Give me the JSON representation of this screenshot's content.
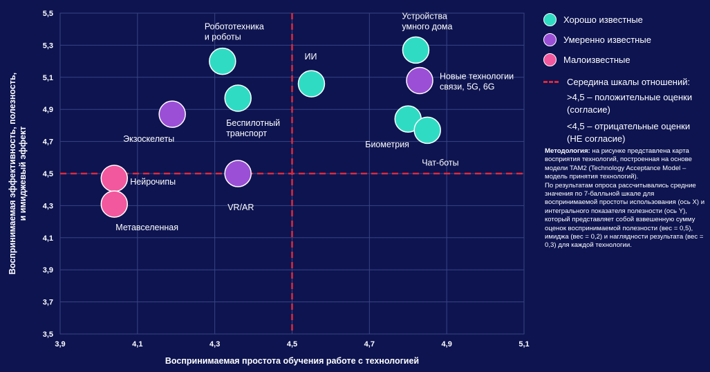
{
  "chart_data": {
    "type": "scatter",
    "xlabel": "Воспринимаемая простота обучения работе с технологией",
    "ylabel_lines": [
      "Воспринимаемая эффективность, полезность,",
      "и имиджевый эффект"
    ],
    "xlim": [
      3.9,
      5.1
    ],
    "ylim": [
      3.5,
      5.5
    ],
    "x_ticks": [
      "3,9",
      "4,1",
      "4,3",
      "4,5",
      "4,7",
      "4,9",
      "5,1"
    ],
    "y_ticks": [
      "3,5",
      "3,7",
      "3,9",
      "4,1",
      "4,3",
      "4,5",
      "4,7",
      "4,9",
      "5,1",
      "5,3",
      "5,5"
    ],
    "grid": true,
    "midline": {
      "x": 4.5,
      "y": 4.5
    },
    "series": [
      {
        "name": "Хорошо известные",
        "color": "#2fdcc3",
        "points": [
          {
            "x": 4.32,
            "y": 5.2,
            "label_lines": [
              "Робототехника",
              "и роботы"
            ]
          },
          {
            "x": 4.36,
            "y": 4.97,
            "label_lines": [
              "Беспилотный",
              "транспорт"
            ]
          },
          {
            "x": 4.55,
            "y": 5.06,
            "label_lines": [
              "ИИ"
            ]
          },
          {
            "x": 4.82,
            "y": 5.27,
            "label_lines": [
              "Устройства",
              "умного дома"
            ]
          },
          {
            "x": 4.8,
            "y": 4.84,
            "label_lines": [
              "Биометрия"
            ]
          },
          {
            "x": 4.85,
            "y": 4.77,
            "label_lines": [
              "Чат-боты"
            ]
          }
        ]
      },
      {
        "name": "Умеренно известные",
        "color": "#9b4fd6",
        "points": [
          {
            "x": 4.19,
            "y": 4.87,
            "label_lines": [
              "Экзоскелеты"
            ]
          },
          {
            "x": 4.36,
            "y": 4.5,
            "label_lines": [
              "VR/AR"
            ]
          },
          {
            "x": 4.83,
            "y": 5.08,
            "label_lines": [
              "Новые технологии",
              "связи, 5G, 6G"
            ]
          }
        ]
      },
      {
        "name": "Малоизвестные",
        "color": "#f2589d",
        "points": [
          {
            "x": 4.04,
            "y": 4.47,
            "label_lines": [
              "Нейрочипы"
            ]
          },
          {
            "x": 4.04,
            "y": 4.31,
            "label_lines": [
              "Метавселенная"
            ]
          }
        ]
      }
    ]
  },
  "legend": {
    "items": [
      {
        "label": "Хорошо известные",
        "color": "#2fdcc3"
      },
      {
        "label": "Умеренно известные",
        "color": "#9b4fd6"
      },
      {
        "label": "Малоизвестные",
        "color": "#f2589d"
      }
    ],
    "midline_label": "Середина шкалы отношений:",
    "positive_note": ">4,5 – положительные оценки (согласие)",
    "negative_note": "<4,5 – отрицательные оценки (НЕ согласие)"
  },
  "methodology": {
    "title": "Методология:",
    "text": "на рисунке представлена карта восприятия технологий, построенная на основе модели TAM2 (Technology Acceptance Model – модель принятия технологий).",
    "text2": "По результатам опроса рассчитывались средние значения по 7-балльной шкале для воспринимаемой простоты использования (ось X) и интегрального показателя полезности (ось Y), который представляет собой взвешенную сумму оценок воспринимаемой полезности (вес = 0,5), имиджа (вес = 0,2) и наглядности результата (вес = 0,3) для каждой технологии."
  },
  "colors": {
    "background": "#0d1450",
    "grid": "#3a4585",
    "midline": "#e0283a"
  }
}
